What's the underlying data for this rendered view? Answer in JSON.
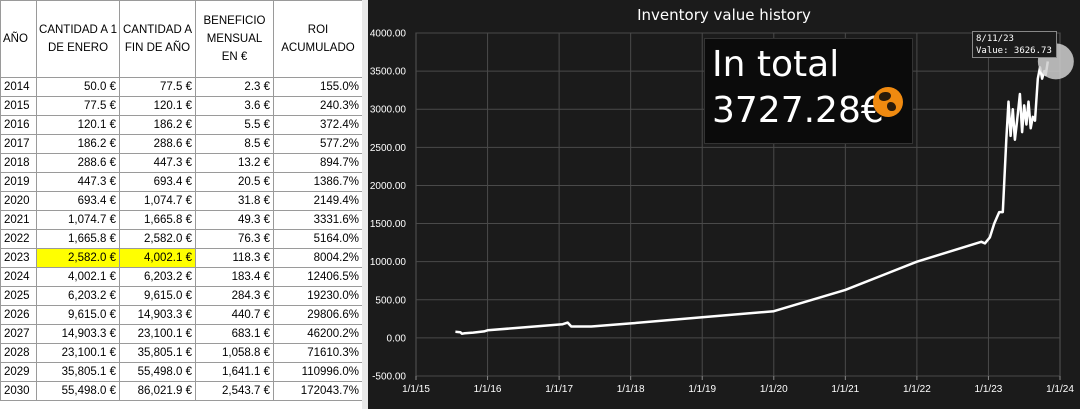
{
  "table": {
    "headers": [
      "AÑO",
      "CANTIDAD A 1 DE ENERO",
      "CANTIDAD A FIN DE AÑO",
      "BENEFICIO MENSUAL EN €",
      "ROI ACUMULADO"
    ],
    "highlight_year": "2023",
    "highlight_color": "#ffff00",
    "rows": [
      [
        "2014",
        "50.0 €",
        "77.5 €",
        "2.3 €",
        "155.0%"
      ],
      [
        "2015",
        "77.5 €",
        "120.1 €",
        "3.6 €",
        "240.3%"
      ],
      [
        "2016",
        "120.1 €",
        "186.2 €",
        "5.5 €",
        "372.4%"
      ],
      [
        "2017",
        "186.2 €",
        "288.6 €",
        "8.5 €",
        "577.2%"
      ],
      [
        "2018",
        "288.6 €",
        "447.3 €",
        "13.2 €",
        "894.7%"
      ],
      [
        "2019",
        "447.3 €",
        "693.4 €",
        "20.5 €",
        "1386.7%"
      ],
      [
        "2020",
        "693.4 €",
        "1,074.7 €",
        "31.8 €",
        "2149.4%"
      ],
      [
        "2021",
        "1,074.7 €",
        "1,665.8 €",
        "49.3 €",
        "3331.6%"
      ],
      [
        "2022",
        "1,665.8 €",
        "2,582.0 €",
        "76.3 €",
        "5164.0%"
      ],
      [
        "2023",
        "2,582.0 €",
        "4,002.1 €",
        "118.3 €",
        "8004.2%"
      ],
      [
        "2024",
        "4,002.1 €",
        "6,203.2 €",
        "183.4 €",
        "12406.5%"
      ],
      [
        "2025",
        "6,203.2 €",
        "9,615.0 €",
        "284.3 €",
        "19230.0%"
      ],
      [
        "2026",
        "9,615.0 €",
        "14,903.3 €",
        "440.7 €",
        "29806.6%"
      ],
      [
        "2027",
        "14,903.3 €",
        "23,100.1 €",
        "683.1 €",
        "46200.2%"
      ],
      [
        "2028",
        "23,100.1 €",
        "35,805.1 €",
        "1,058.8 €",
        "71610.3%"
      ],
      [
        "2029",
        "35,805.1 €",
        "55,498.0 €",
        "1,641.1 €",
        "110996.0%"
      ],
      [
        "2030",
        "55,498.0 €",
        "86,021.9 €",
        "2,543.7 €",
        "172043.7%"
      ]
    ]
  },
  "chart_data": {
    "type": "line",
    "title": "Inventory value history",
    "xlabel": "",
    "ylabel": "",
    "ylim": [
      -500,
      4000
    ],
    "yticks": [
      "4000.00",
      "3500.00",
      "3000.00",
      "2500.00",
      "2000.00",
      "1500.00",
      "1000.00",
      "500.00",
      "0.00",
      "-500.00"
    ],
    "xticks": [
      "1/1/15",
      "1/1/16",
      "1/1/17",
      "1/1/18",
      "1/1/19",
      "1/1/20",
      "1/1/21",
      "1/1/22",
      "1/1/23",
      "1/1/24"
    ],
    "xlim_years": [
      2015.0,
      2024.0
    ],
    "grid": true,
    "line_color": "#ffffff",
    "background": "#1b1b1b",
    "series": [
      {
        "values": [
          [
            2015.55,
            80
          ],
          [
            2015.62,
            75
          ],
          [
            2015.64,
            55
          ],
          [
            2015.68,
            60
          ],
          [
            2015.8,
            70
          ],
          [
            2015.95,
            85
          ],
          [
            2016.0,
            100
          ],
          [
            2017.05,
            180
          ],
          [
            2017.12,
            200
          ],
          [
            2017.17,
            150
          ],
          [
            2017.45,
            150
          ],
          [
            2018.0,
            190
          ],
          [
            2019.0,
            270
          ],
          [
            2020.0,
            350
          ],
          [
            2021.0,
            630
          ],
          [
            2022.0,
            1000
          ],
          [
            2022.9,
            1260
          ],
          [
            2022.95,
            1240
          ],
          [
            2023.02,
            1320
          ],
          [
            2023.08,
            1500
          ],
          [
            2023.15,
            1650
          ],
          [
            2023.2,
            1650
          ],
          [
            2023.25,
            2600
          ],
          [
            2023.28,
            3100
          ],
          [
            2023.31,
            2650
          ],
          [
            2023.34,
            3000
          ],
          [
            2023.37,
            2600
          ],
          [
            2023.4,
            2850
          ],
          [
            2023.44,
            3200
          ],
          [
            2023.47,
            2700
          ],
          [
            2023.5,
            3050
          ],
          [
            2023.53,
            2800
          ],
          [
            2023.56,
            3100
          ],
          [
            2023.59,
            2750
          ],
          [
            2023.62,
            2900
          ],
          [
            2023.65,
            2850
          ],
          [
            2023.69,
            3400
          ],
          [
            2023.72,
            3550
          ],
          [
            2023.75,
            3400
          ],
          [
            2023.78,
            3500
          ],
          [
            2023.8,
            3450
          ],
          [
            2023.83,
            3627
          ]
        ]
      }
    ],
    "tooltip": {
      "date": "8/11/23",
      "value": "Value: 3626.73"
    }
  },
  "total_box": {
    "label": "In total",
    "value": "3727.28€"
  }
}
